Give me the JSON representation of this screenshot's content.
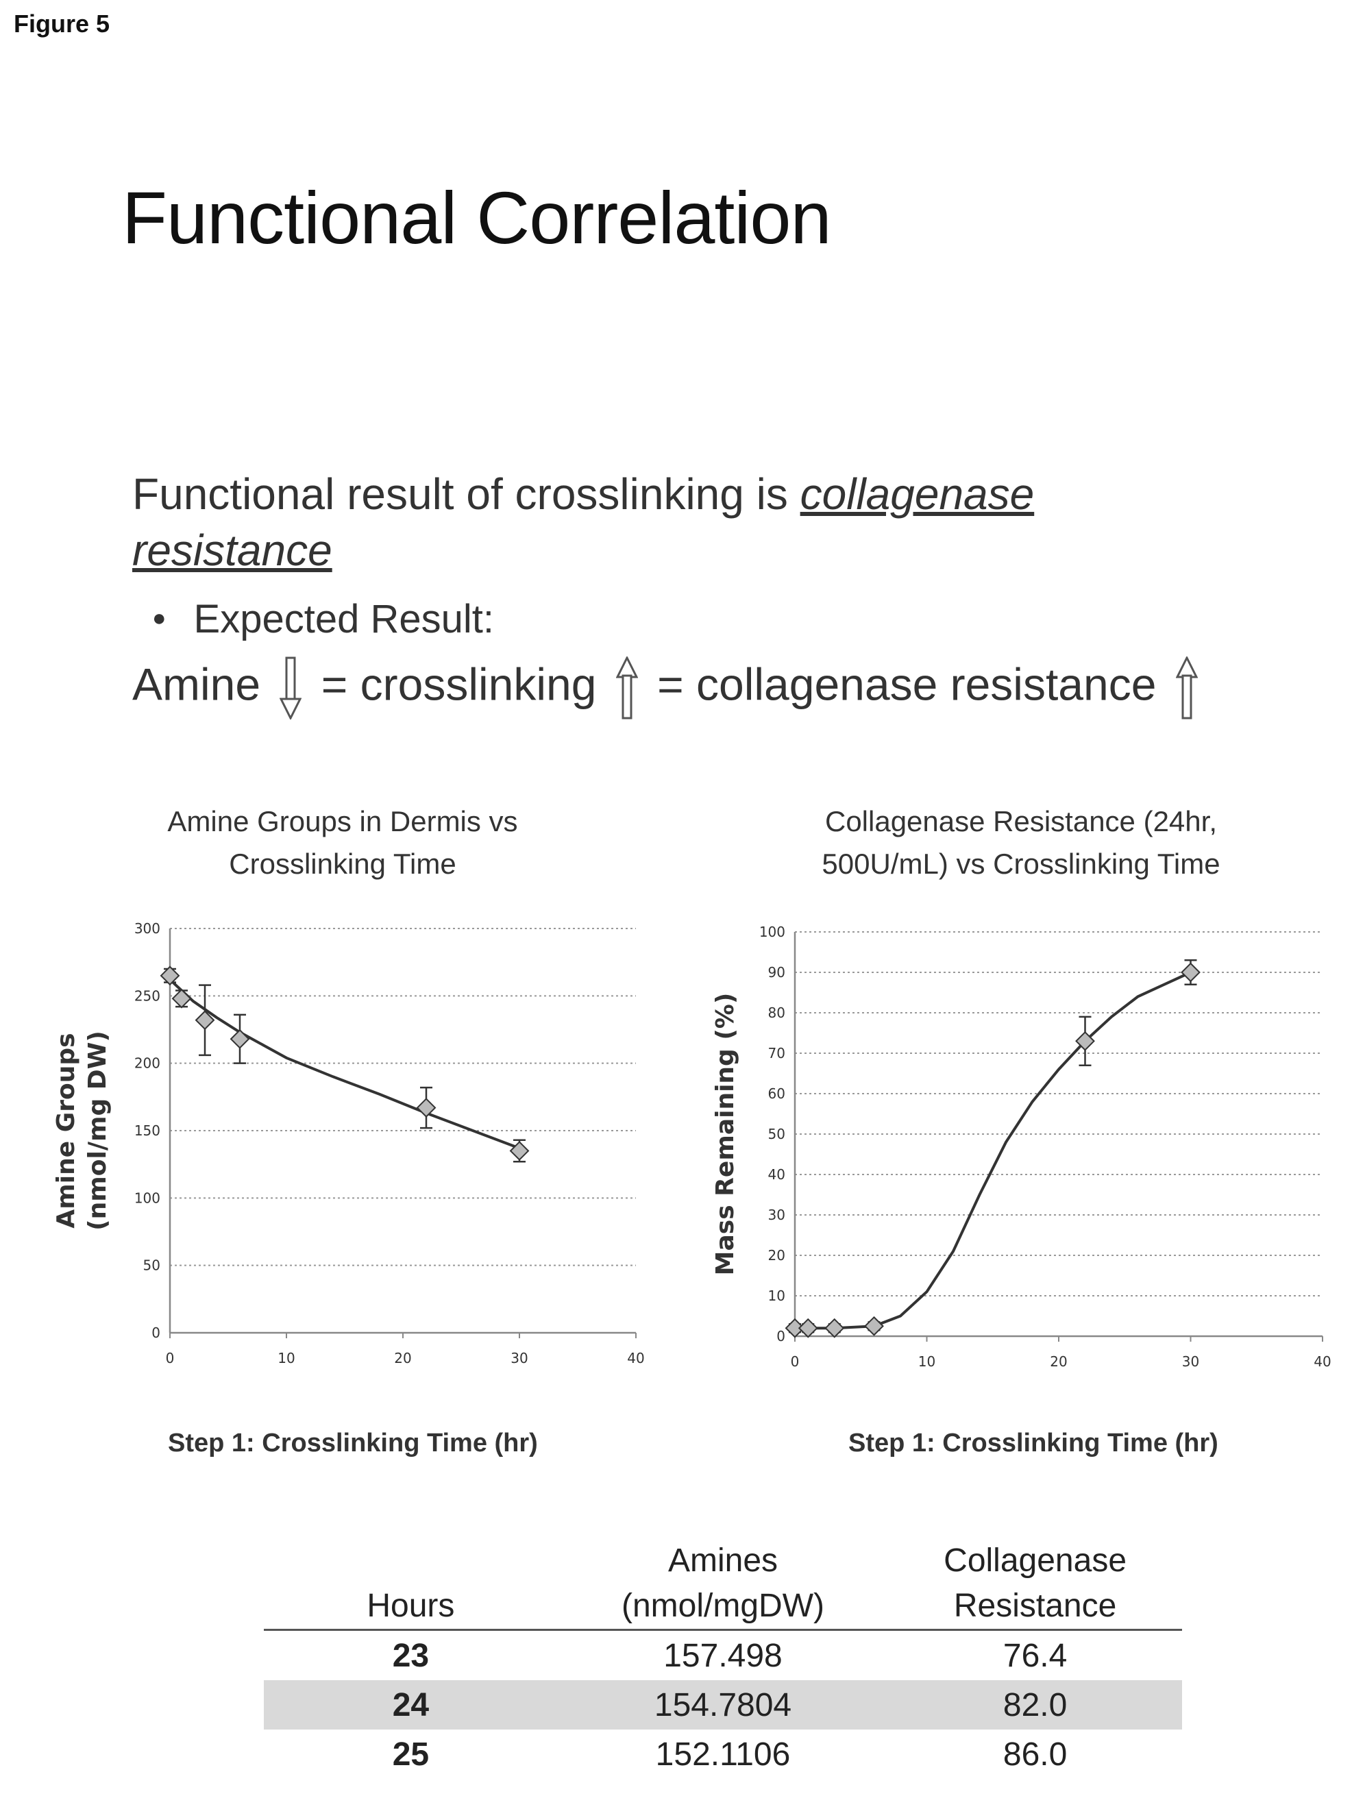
{
  "figure_label": "Figure 5",
  "title": "Functional Correlation",
  "lead_text": {
    "prefix": "Functional result of crosslinking is ",
    "emphasis": "collagenase resistance"
  },
  "bullet": "Expected Result:",
  "equation": {
    "term1": "Amine",
    "term2": "= crosslinking",
    "term3": "= collagenase resistance"
  },
  "colors": {
    "line": "#333333",
    "grid": "#999999",
    "axis": "#888888",
    "text": "#333333"
  },
  "chart_data": [
    {
      "type": "line",
      "title": "Amine Groups in Dermis vs Crosslinking Time",
      "title_lines": [
        "Amine Groups in Dermis vs",
        "Crosslinking Time"
      ],
      "xlabel": "Step 1: Crosslinking Time (hr)",
      "ylabel_lines": [
        "Amine Groups",
        "(nmol/mg DW)"
      ],
      "xlim": [
        0,
        40
      ],
      "ylim": [
        0,
        300
      ],
      "x_ticks": [
        "0",
        "10",
        "20",
        "30",
        "40"
      ],
      "y_ticks": [
        "0",
        "50",
        "100",
        "150",
        "200",
        "250",
        "300"
      ],
      "grid": true,
      "points": [
        {
          "x": 0,
          "y": 265,
          "err": 5
        },
        {
          "x": 1,
          "y": 248,
          "err": 6
        },
        {
          "x": 3,
          "y": 232,
          "err": 26
        },
        {
          "x": 6,
          "y": 218,
          "err": 18
        },
        {
          "x": 22,
          "y": 167,
          "err": 15
        },
        {
          "x": 30,
          "y": 135,
          "err": 8
        }
      ],
      "fit_curve": [
        [
          0,
          262
        ],
        [
          2,
          246
        ],
        [
          4,
          234
        ],
        [
          6,
          223
        ],
        [
          10,
          204
        ],
        [
          14,
          190
        ],
        [
          18,
          177
        ],
        [
          22,
          163
        ],
        [
          26,
          150
        ],
        [
          30,
          137
        ]
      ]
    },
    {
      "type": "line",
      "title": "Collagenase Resistance (24hr, 500U/mL) vs Crosslinking Time",
      "title_lines": [
        "Collagenase Resistance (24hr,",
        "500U/mL) vs Crosslinking Time"
      ],
      "xlabel": "Step 1: Crosslinking Time (hr)",
      "ylabel_lines": [
        "Mass Remaining (%)"
      ],
      "xlim": [
        0,
        40
      ],
      "ylim": [
        0,
        100
      ],
      "x_ticks": [
        "0",
        "10",
        "20",
        "30",
        "40"
      ],
      "y_ticks": [
        "0",
        "10",
        "20",
        "30",
        "40",
        "50",
        "60",
        "70",
        "80",
        "90",
        "100"
      ],
      "grid": true,
      "points": [
        {
          "x": 0,
          "y": 2,
          "err": 1
        },
        {
          "x": 1,
          "y": 2,
          "err": 1
        },
        {
          "x": 3,
          "y": 2,
          "err": 1
        },
        {
          "x": 6,
          "y": 2.5,
          "err": 1
        },
        {
          "x": 22,
          "y": 73,
          "err": 6
        },
        {
          "x": 30,
          "y": 90,
          "err": 3
        }
      ],
      "fit_curve": [
        [
          0,
          2
        ],
        [
          3,
          2
        ],
        [
          6,
          2.5
        ],
        [
          8,
          5
        ],
        [
          10,
          11
        ],
        [
          12,
          21
        ],
        [
          14,
          35
        ],
        [
          16,
          48
        ],
        [
          18,
          58
        ],
        [
          20,
          66
        ],
        [
          22,
          73
        ],
        [
          24,
          79
        ],
        [
          26,
          84
        ],
        [
          28,
          87
        ],
        [
          30,
          90
        ]
      ]
    }
  ],
  "table": {
    "headers": [
      {
        "line1": "",
        "line2": "Hours"
      },
      {
        "line1": "Amines",
        "line2": "(nmol/mgDW)"
      },
      {
        "line1": "Collagenase",
        "line2": "Resistance"
      }
    ],
    "rows": [
      {
        "hours": "23",
        "amines": "157.498",
        "resistance": "76.4"
      },
      {
        "hours": "24",
        "amines": "154.7804",
        "resistance": "82.0"
      },
      {
        "hours": "25",
        "amines": "152.1106",
        "resistance": "86.0"
      }
    ]
  }
}
